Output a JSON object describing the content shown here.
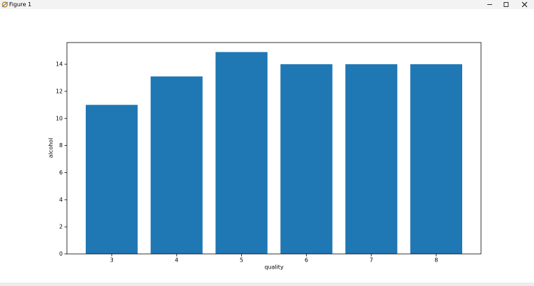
{
  "window_title": "Figure 1",
  "chart_data": {
    "type": "bar",
    "xlabel": "quality",
    "ylabel": "alcohol",
    "categories": [
      "3",
      "4",
      "5",
      "6",
      "7",
      "8"
    ],
    "values": [
      11.0,
      13.1,
      14.9,
      14.0,
      14.0,
      14.0
    ],
    "color": "#1f77b4",
    "ylim": [
      0,
      15.6
    ],
    "yticks": [
      0,
      2,
      4,
      6,
      8,
      10,
      12,
      14
    ],
    "grid": false
  }
}
